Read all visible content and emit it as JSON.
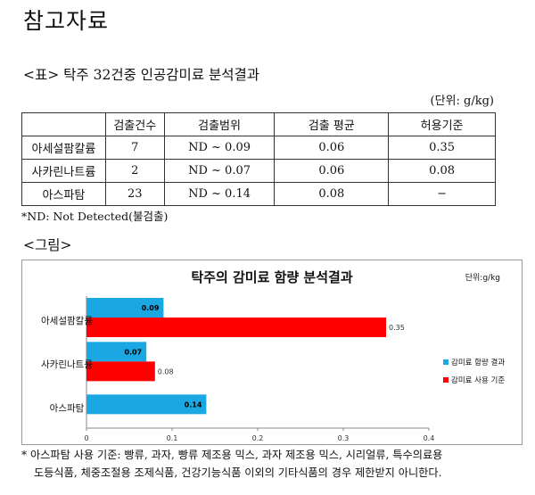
{
  "document": {
    "title": "참고자료",
    "table_heading": "<표> 탁주 32건중 인공감미료 분석결과",
    "unit": "(단위: g/kg)",
    "table": {
      "columns": [
        "",
        "검출건수",
        "검출범위",
        "검출 평균",
        "허용기준"
      ],
      "rows": [
        [
          "아세설팜칼륨",
          "7",
          "ND ~ 0.09",
          "0.06",
          "0.35"
        ],
        [
          "사카린나트륨",
          "2",
          "ND ~ 0.07",
          "0.06",
          "0.08"
        ],
        [
          "아스파탐",
          "23",
          "ND ~ 0.14",
          "0.08",
          "−"
        ]
      ]
    },
    "footnote": "*ND: Not Detected(불검출)",
    "figure_heading": "<그림>",
    "bottom_note_line1": "* 아스파탐 사용 기준: 빵류, 과자, 빵류 제조용 믹스, 과자 제조용 믹스, 시리얼류, 특수의료용",
    "bottom_note_line2": "도등식품, 체중조절용 조제식품, 건강기능식품 이외의 기타식품의 경우 제한받지 아니한다."
  },
  "chart_data": {
    "type": "bar",
    "orientation": "horizontal",
    "title": "탁주의 감미료 함량 분석결과",
    "unit_label": "단위:g/kg",
    "categories": [
      "아세설팜칼륨",
      "사카린나트륨",
      "아스파탐"
    ],
    "series": [
      {
        "name": "감미료 함량 결과",
        "color": "#1ba7e2",
        "values": [
          0.09,
          0.07,
          0.14
        ],
        "labels": [
          "0.09",
          "0.07",
          "0.14"
        ]
      },
      {
        "name": "감미료 사용 기준",
        "color": "#ff0000",
        "values": [
          0.35,
          0.08,
          null
        ],
        "labels": [
          "0.35",
          "0.08",
          ""
        ]
      }
    ],
    "xlim": [
      0,
      0.4
    ],
    "xticks": [
      "0",
      "0.1",
      "0.2",
      "0.3",
      "0.4"
    ],
    "legend_position": "right",
    "grid": false
  }
}
